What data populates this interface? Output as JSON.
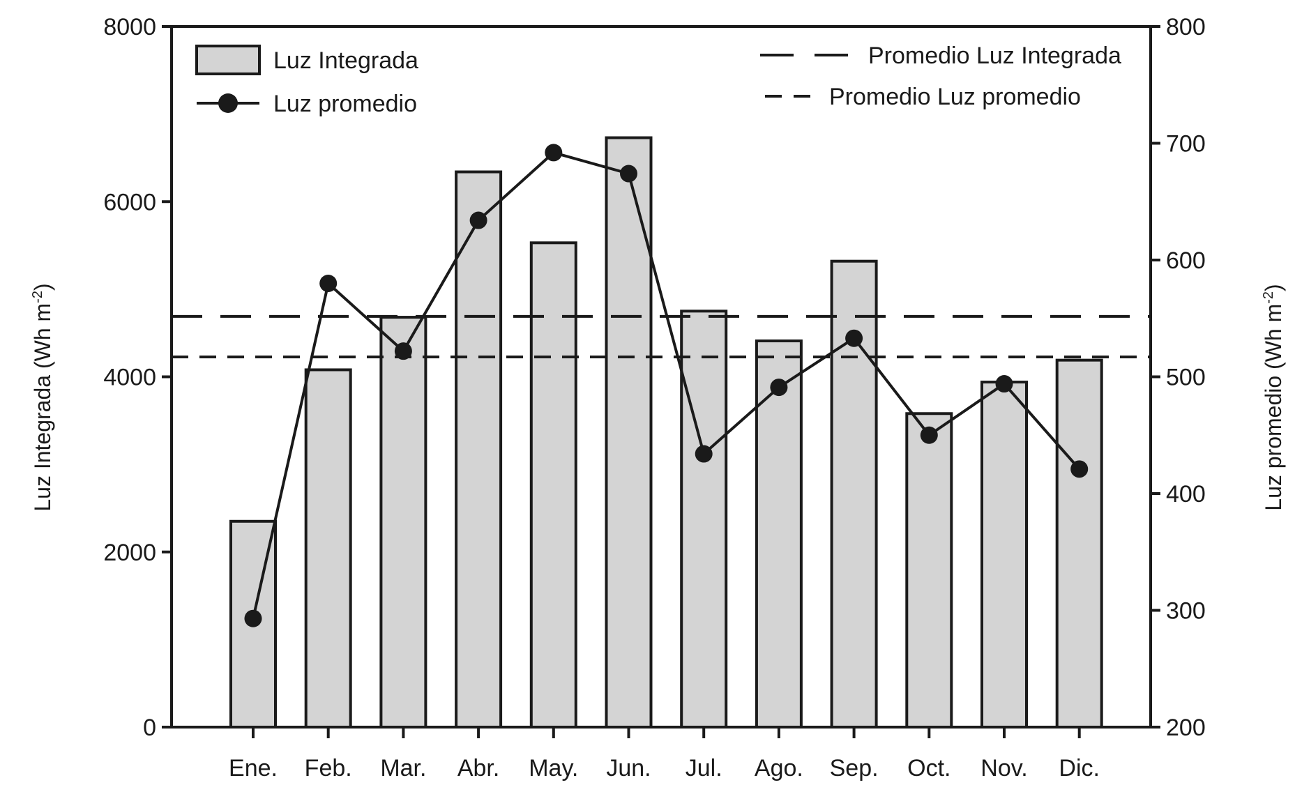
{
  "chart_data": {
    "type": "bar+line",
    "categories": [
      "Ene.",
      "Feb.",
      "Mar.",
      "Abr.",
      "May.",
      "Jun.",
      "Jul.",
      "Ago.",
      "Sep.",
      "Oct.",
      "Nov.",
      "Dic."
    ],
    "series": [
      {
        "name": "Luz Integrada",
        "kind": "bar",
        "axis": "left",
        "values": [
          2350,
          4080,
          4680,
          6340,
          5530,
          6730,
          4750,
          4410,
          5320,
          3580,
          3940,
          4190
        ],
        "color": "#d4d4d4"
      },
      {
        "name": "Luz promedio",
        "kind": "line",
        "axis": "right",
        "values": [
          293,
          580,
          522,
          634,
          692,
          674,
          434,
          491,
          533,
          450,
          494,
          421
        ],
        "color": "#1a1a1a"
      }
    ],
    "reference_lines": [
      {
        "name": "Promedio Luz Integrada",
        "axis": "left",
        "value": 4690,
        "style": "long-dash"
      },
      {
        "name": "Promedio Luz promedio",
        "axis": "right",
        "value": 517,
        "style": "short-dash"
      }
    ],
    "y_left": {
      "label": "Luz Integrada (Wh m",
      "label_sup": "-2",
      "label_close": ")",
      "ylim": [
        0,
        8000
      ],
      "ticks": [
        0,
        2000,
        4000,
        6000,
        8000
      ]
    },
    "y_right": {
      "label": "Luz promedio  (Wh m",
      "label_sup": "-2",
      "label_close": ")",
      "ylim": [
        200,
        800
      ],
      "ticks": [
        200,
        300,
        400,
        500,
        600,
        700,
        800
      ]
    },
    "legend": {
      "left_position": "top-left",
      "right_position": "top-right"
    },
    "grid": false
  }
}
